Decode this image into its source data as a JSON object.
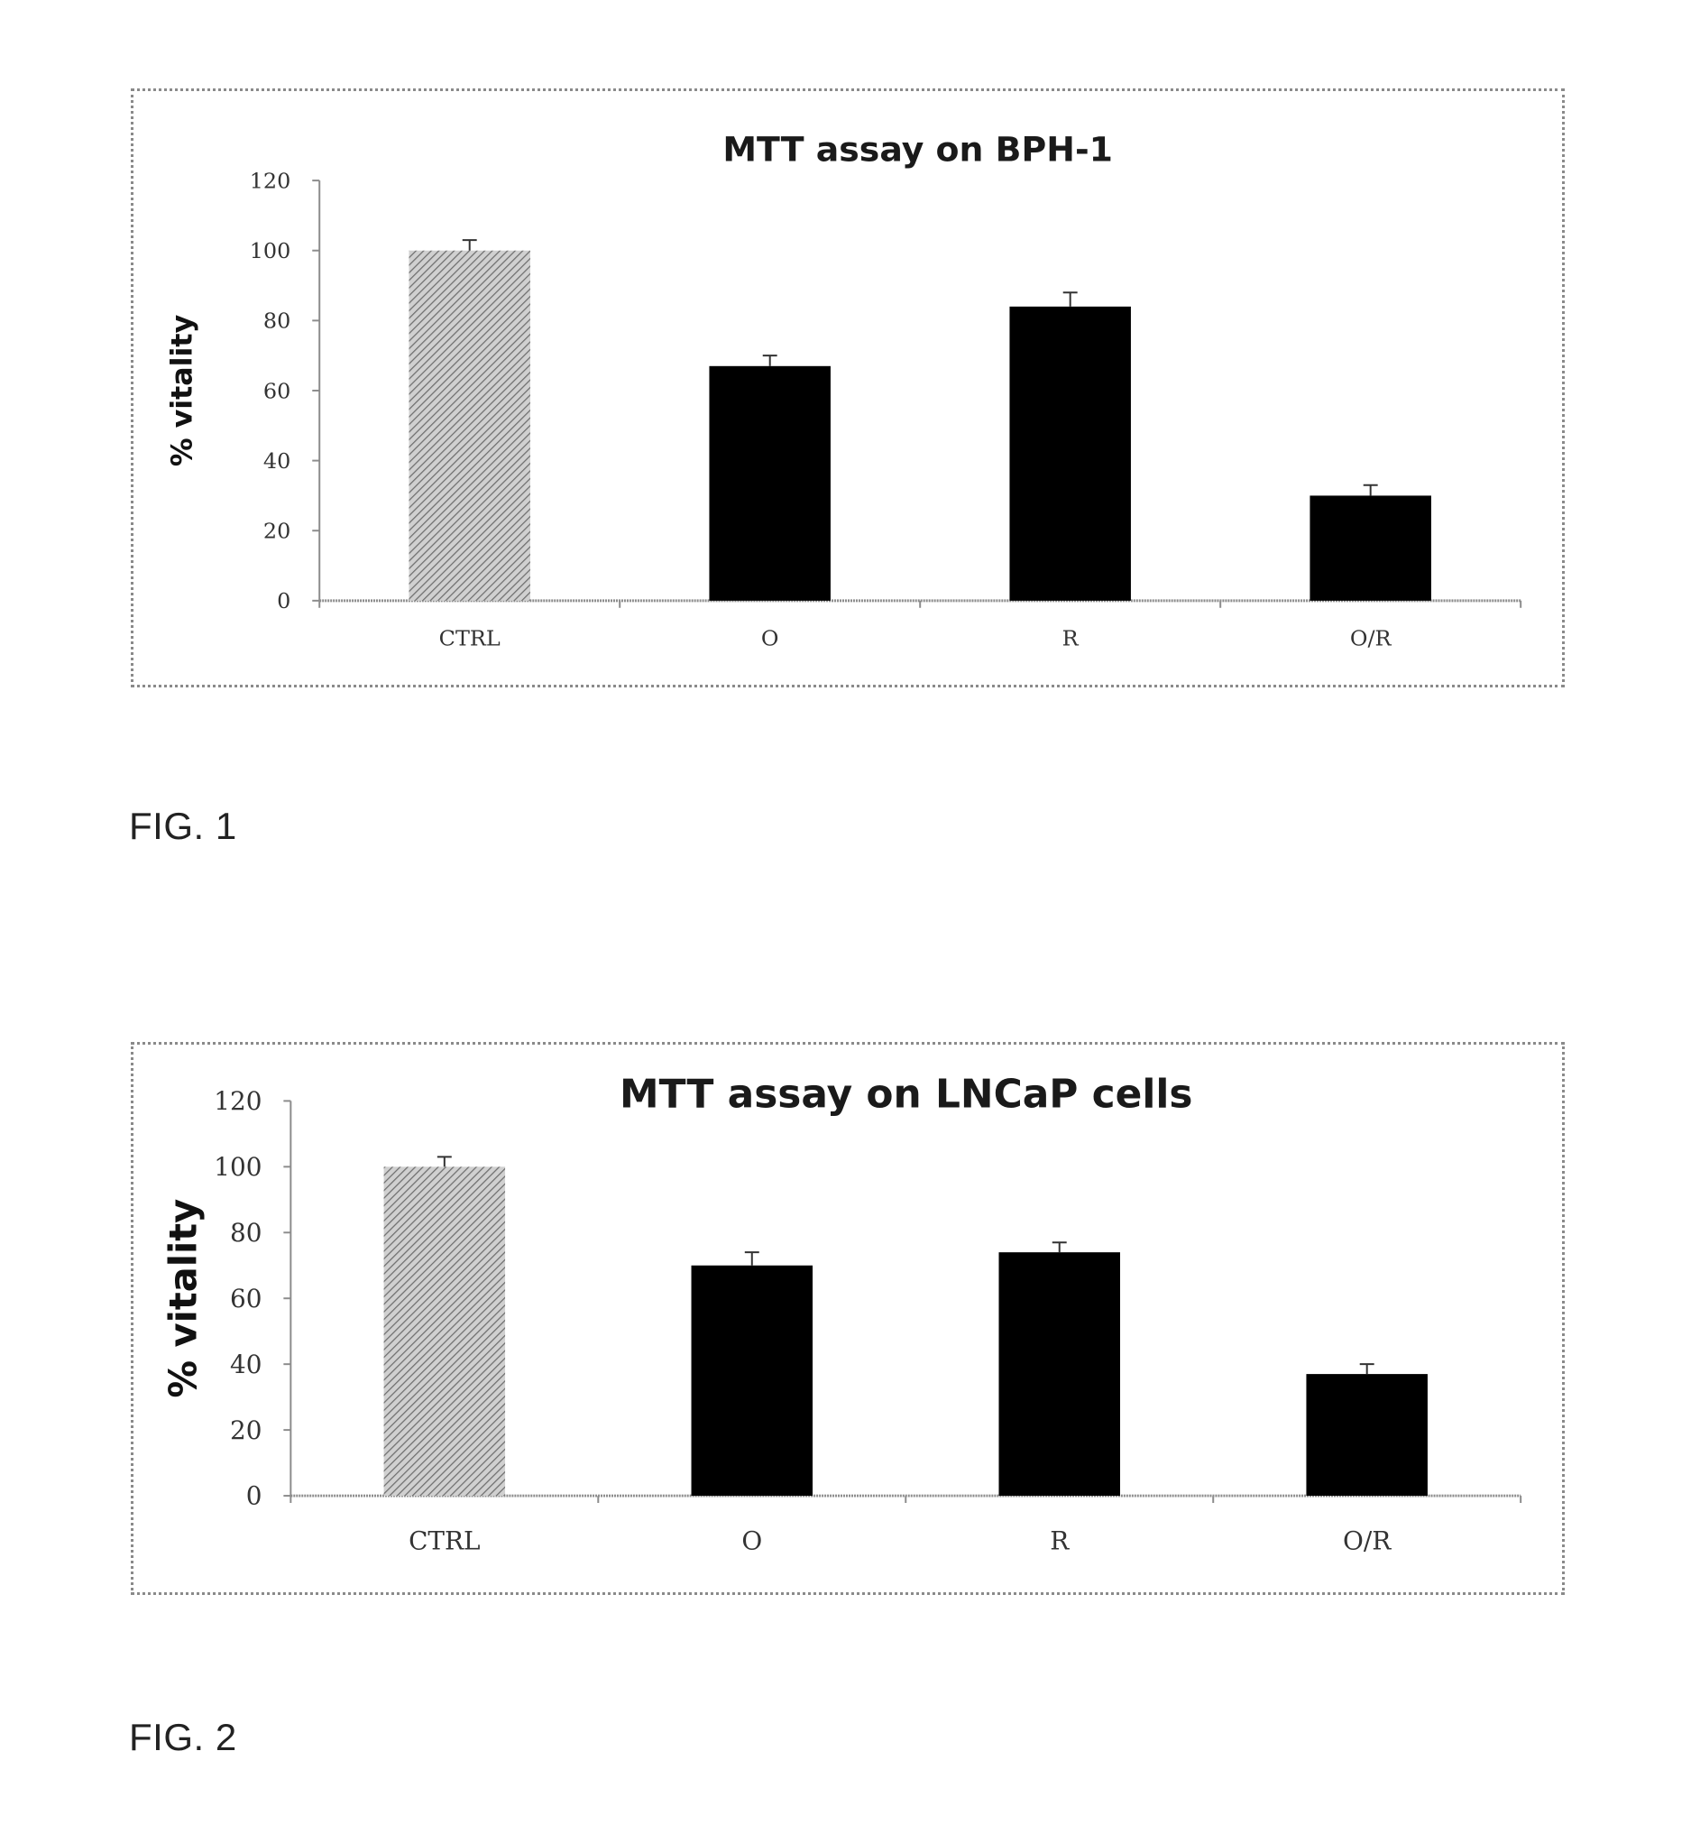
{
  "figures": [
    {
      "caption": "FIG. 1"
    },
    {
      "caption": "FIG. 2"
    }
  ],
  "colors": {
    "treatment_bar": "#000000",
    "control_bar": "#b3b3b3",
    "axis": "#8c8c8c"
  },
  "chart_data": [
    {
      "type": "bar",
      "title": "MTT assay on BPH-1",
      "ylabel": "% vitality",
      "xlabel": "",
      "categories": [
        "CTRL",
        "O",
        "R",
        "O/R"
      ],
      "values": [
        100,
        67,
        84,
        30
      ],
      "errors": [
        3,
        3,
        4,
        3
      ],
      "ylim": [
        0,
        120
      ],
      "yticks": [
        "0",
        "20",
        "40",
        "60",
        "80",
        "100",
        "120"
      ],
      "grid": false,
      "legend": "none",
      "bar_styles": [
        "hatched-gray",
        "solid-black",
        "solid-black",
        "solid-black"
      ]
    },
    {
      "type": "bar",
      "title": "MTT assay on LNCaP cells",
      "ylabel": "% vitality",
      "xlabel": "",
      "categories": [
        "CTRL",
        "O",
        "R",
        "O/R"
      ],
      "values": [
        100,
        70,
        74,
        37
      ],
      "errors": [
        3,
        4,
        3,
        3
      ],
      "ylim": [
        0,
        120
      ],
      "yticks": [
        "0",
        "20",
        "40",
        "60",
        "80",
        "100",
        "120"
      ],
      "grid": false,
      "legend": "none",
      "bar_styles": [
        "hatched-gray",
        "solid-black",
        "solid-black",
        "solid-black"
      ]
    }
  ]
}
